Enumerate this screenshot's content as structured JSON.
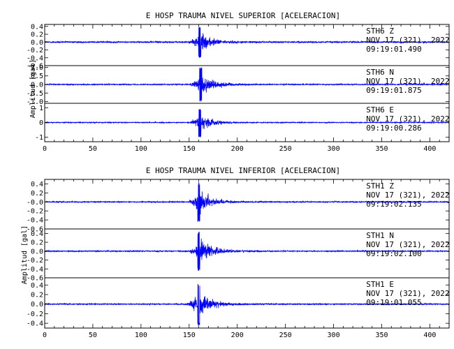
{
  "chart_data": [
    {
      "type": "line",
      "title": "E HOSP TRAUMA NIVEL SUPERIOR [ACELERACION]",
      "ylabel": "Amplitud [gal]",
      "xlim": [
        0,
        420
      ],
      "x_ticks": [
        "0",
        "50",
        "100",
        "150",
        "200",
        "250",
        "300",
        "350",
        "400"
      ],
      "grid": false,
      "line_color": "#0000ff",
      "series": [
        {
          "station": "STH6",
          "component": "Z",
          "date": "NOV 17 (321), 2022",
          "time": "09:19:01.490",
          "ylim": [
            -0.6,
            0.45
          ],
          "y_ticks": [
            "0.4",
            "0.2",
            "0.0",
            "-0.2",
            "-0.4",
            "-0.6"
          ],
          "noise": 0.03,
          "peak": 0.4,
          "onset": 148,
          "peak_time": 161,
          "coda": 12
        },
        {
          "station": "STH6",
          "component": "N",
          "date": "NOV 17 (321), 2022",
          "time": "09:19:01.875",
          "ylim": [
            -1.1,
            1.1
          ],
          "y_ticks": [
            "1.0",
            "0.5",
            "0.0",
            "-0.5",
            "-1.0"
          ],
          "noise": 0.05,
          "peak": 1.0,
          "onset": 148,
          "peak_time": 162,
          "coda": 14
        },
        {
          "station": "STH6",
          "component": "E",
          "date": "NOV 17 (321), 2022",
          "time": "09:19:00.286",
          "ylim": [
            -1.3,
            1.3
          ],
          "y_ticks": [
            "1",
            "0",
            "-1"
          ],
          "noise": 0.05,
          "peak": 1.0,
          "onset": 148,
          "peak_time": 161,
          "coda": 12
        }
      ]
    },
    {
      "type": "line",
      "title": "E HOSP TRAUMA NIVEL INFERIOR [ACELERACION]",
      "ylabel": "Amplitud [gal]",
      "xlim": [
        0,
        420
      ],
      "x_ticks": [
        "0",
        "50",
        "100",
        "150",
        "200",
        "250",
        "300",
        "350",
        "400"
      ],
      "grid": false,
      "line_color": "#0000ff",
      "series": [
        {
          "station": "STH1",
          "component": "Z",
          "date": "NOV 17 (321), 2022",
          "time": "09:19:02.135",
          "ylim": [
            -0.6,
            0.5
          ],
          "y_ticks": [
            "0.4",
            "0.2",
            "-0.0",
            "-0.2",
            "-0.4",
            "-0.6"
          ],
          "noise": 0.02,
          "peak": 0.45,
          "onset": 148,
          "peak_time": 160,
          "coda": 12
        },
        {
          "station": "STH1",
          "component": "N",
          "date": "NOV 17 (321), 2022",
          "time": "09:19:02.100",
          "ylim": [
            -0.6,
            0.5
          ],
          "y_ticks": [
            "0.4",
            "0.2",
            "0.0",
            "-0.2",
            "-0.4",
            "-0.6"
          ],
          "noise": 0.02,
          "peak": 0.45,
          "onset": 148,
          "peak_time": 160,
          "coda": 14
        },
        {
          "station": "STH1",
          "component": "E",
          "date": "NOV 17 (321), 2022",
          "time": "09:19:01.055",
          "ylim": [
            -0.5,
            0.55
          ],
          "y_ticks": [
            "0.4",
            "0.2",
            "0.0",
            "-0.2",
            "-0.4"
          ],
          "noise": 0.02,
          "peak": 0.45,
          "onset": 146,
          "peak_time": 160,
          "coda": 12
        }
      ]
    }
  ]
}
